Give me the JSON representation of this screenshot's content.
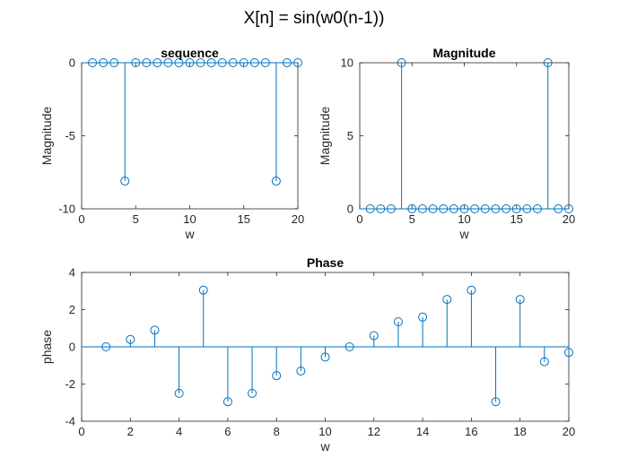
{
  "figure": {
    "title": "X[n] = sin(w0(n-1))"
  },
  "colors": {
    "stem": "#0072BD",
    "axis": "#262626",
    "background": "#ffffff"
  },
  "chart_data": [
    {
      "type": "stem",
      "title": "sequence",
      "xlabel": "w",
      "ylabel": "Magnitude",
      "xlim": [
        0,
        20
      ],
      "ylim": [
        -10,
        0
      ],
      "xticks": [
        0,
        5,
        10,
        15,
        20
      ],
      "yticks": [
        -10,
        -5,
        0
      ],
      "grid": false,
      "series": [
        {
          "x": [
            1,
            2,
            3,
            4,
            5,
            6,
            7,
            8,
            9,
            10,
            11,
            12,
            13,
            14,
            15,
            16,
            17,
            18,
            19,
            20
          ],
          "y": [
            0,
            0,
            0,
            -8.1,
            0,
            0,
            0,
            0,
            0,
            0,
            0,
            0,
            0,
            0,
            0,
            0,
            0,
            -8.1,
            0,
            0
          ]
        }
      ]
    },
    {
      "type": "stem",
      "title": "Magnitude",
      "xlabel": "w",
      "ylabel": "Magnitude",
      "xlim": [
        0,
        20
      ],
      "ylim": [
        0,
        10
      ],
      "xticks": [
        0,
        5,
        10,
        15,
        20
      ],
      "yticks": [
        0,
        5,
        10
      ],
      "grid": false,
      "series": [
        {
          "x": [
            1,
            2,
            3,
            4,
            5,
            6,
            7,
            8,
            9,
            10,
            11,
            12,
            13,
            14,
            15,
            16,
            17,
            18,
            19,
            20
          ],
          "y": [
            0,
            0,
            0,
            10,
            0,
            0,
            0,
            0,
            0,
            0,
            0,
            0,
            0,
            0,
            0,
            0,
            0,
            10,
            0,
            0
          ]
        }
      ]
    },
    {
      "type": "stem",
      "title": "Phase",
      "xlabel": "w",
      "ylabel": "phase",
      "xlim": [
        0,
        20
      ],
      "ylim": [
        -4,
        4
      ],
      "xticks": [
        0,
        2,
        4,
        6,
        8,
        10,
        12,
        14,
        16,
        18,
        20
      ],
      "yticks": [
        -4,
        -2,
        0,
        2,
        4
      ],
      "grid": false,
      "series": [
        {
          "x": [
            1,
            2,
            3,
            4,
            5,
            6,
            7,
            8,
            9,
            10,
            11,
            12,
            13,
            14,
            15,
            16,
            17,
            18,
            19,
            20
          ],
          "y": [
            0.0,
            0.4,
            0.9,
            -2.5,
            3.05,
            -2.95,
            -2.5,
            -1.55,
            -1.3,
            -0.55,
            0.0,
            0.6,
            1.35,
            1.6,
            2.55,
            3.05,
            -2.95,
            2.55,
            -0.8,
            -0.3
          ]
        }
      ]
    }
  ]
}
